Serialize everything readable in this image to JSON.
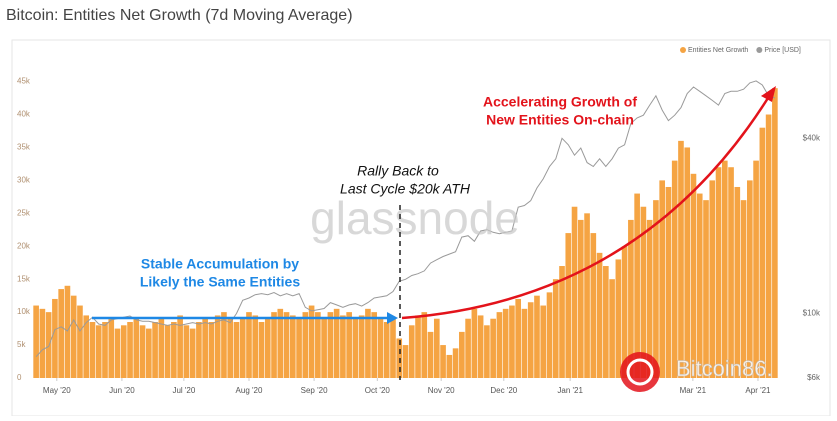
{
  "chart_data": {
    "type": "bar",
    "title": "Bitcoin: Entities Net Growth (7d Moving Average)",
    "categories": [
      null,
      null,
      null,
      null,
      null,
      null,
      null,
      null,
      null,
      null,
      null,
      null,
      null,
      null,
      null,
      null,
      null,
      null,
      null,
      null,
      null,
      null,
      null,
      null,
      null,
      null,
      null,
      null,
      null,
      null,
      null,
      null,
      null,
      null,
      null,
      null,
      null,
      null,
      null,
      null,
      null,
      null,
      null,
      null,
      null,
      null,
      null,
      null,
      null,
      null,
      null,
      null,
      null,
      null,
      null,
      null,
      null,
      null,
      null,
      null,
      null,
      null,
      null,
      null,
      null,
      null,
      null,
      null,
      null,
      null,
      null,
      null,
      null,
      null,
      null,
      null,
      null,
      null,
      null,
      null,
      null,
      null,
      null,
      null,
      null,
      null,
      null,
      null,
      null,
      null,
      null,
      null,
      null,
      null,
      null,
      null,
      null,
      null,
      null,
      null,
      null,
      null,
      null,
      null,
      null,
      null,
      null,
      null,
      null,
      null,
      null,
      null,
      null,
      null,
      null,
      null,
      null,
      null,
      null
    ],
    "series": [
      {
        "name": "Entities Net Growth",
        "color": "#f5a443",
        "values": [
          11000,
          10500,
          10000,
          12000,
          13500,
          14000,
          12500,
          11000,
          9500,
          8500,
          8000,
          8500,
          9000,
          7500,
          8000,
          8500,
          9000,
          8000,
          7500,
          8500,
          9000,
          8000,
          8500,
          9500,
          8000,
          7500,
          8500,
          9000,
          8500,
          9500,
          10000,
          9000,
          8500,
          9000,
          10000,
          9500,
          8500,
          9000,
          10000,
          10500,
          10000,
          9500,
          9000,
          10000,
          11000,
          10000,
          9000,
          10000,
          10500,
          9500,
          10000,
          9000,
          9500,
          10500,
          10000,
          9000,
          8500,
          9000,
          6000,
          5000,
          8000,
          9500,
          10000,
          7000,
          9000,
          5000,
          3500,
          4500,
          7000,
          9000,
          10500,
          9500,
          8000,
          9000,
          10000,
          10500,
          11000,
          12000,
          10500,
          11500,
          12500,
          11000,
          13000,
          15000,
          17000,
          22000,
          26000,
          24000,
          25000,
          22000,
          19000,
          17000,
          15000,
          18000,
          20000,
          24000,
          28000,
          26000,
          24000,
          27000,
          30000,
          29000,
          33000,
          36000,
          35000,
          31000,
          28000,
          27000,
          30000,
          32000,
          33000,
          32000,
          29000,
          27000,
          30000,
          33000,
          38000,
          40000,
          44000
        ]
      },
      {
        "name": "Price [USD]",
        "color": "#9a9a9a",
        "axis": "y2",
        "values": [
          7100,
          7500,
          7700,
          8800,
          9000,
          8700,
          9500,
          8700,
          9300,
          9700,
          9200,
          9100,
          9500,
          9600,
          9700,
          9800,
          9500,
          9400,
          9400,
          9300,
          9200,
          9100,
          9200,
          9100,
          9200,
          9300,
          9200,
          9300,
          9200,
          9400,
          9500,
          9300,
          10000,
          11100,
          11300,
          11600,
          11700,
          11600,
          11800,
          11500,
          11700,
          11500,
          11700,
          10500,
          10200,
          10300,
          10400,
          10900,
          10700,
          10500,
          10700,
          10800,
          10600,
          10900,
          11300,
          11400,
          11500,
          11900,
          12900,
          13100,
          13500,
          13700,
          14000,
          14900,
          15300,
          15700,
          16000,
          16300,
          18300,
          18500,
          17700,
          19200,
          19400,
          19000,
          18800,
          19000,
          19200,
          23200,
          23500,
          24400,
          27000,
          29000,
          32000,
          34000,
          40000,
          38000,
          35000,
          37000,
          33000,
          32000,
          34000,
          32000,
          34000,
          37000,
          38000,
          45000,
          47000,
          48000,
          52000,
          56000,
          50000,
          46000,
          48000,
          51000,
          57000,
          60000,
          58000,
          56000,
          54000,
          52000,
          57000,
          58000,
          58000,
          59000,
          62000,
          63000,
          61000,
          56000,
          55000
        ]
      }
    ],
    "xlim": [
      0,
      119
    ],
    "xticks": [
      {
        "value": 3.8,
        "label": "May '20"
      },
      {
        "value": 14.2,
        "label": "Jun '20"
      },
      {
        "value": 24.1,
        "label": "Jul '20"
      },
      {
        "value": 34.5,
        "label": "Aug '20"
      },
      {
        "value": 44.9,
        "label": "Sep '20"
      },
      {
        "value": 55.0,
        "label": "Oct '20"
      },
      {
        "value": 65.2,
        "label": "Nov '20"
      },
      {
        "value": 75.2,
        "label": "Dec '20"
      },
      {
        "value": 85.8,
        "label": "Jan '21"
      },
      {
        "value": 105.4,
        "label": "Mar '21"
      },
      {
        "value": 115.8,
        "label": "Apr '21"
      }
    ],
    "ylim": [
      0,
      46000
    ],
    "yticks": [
      0,
      {
        "value": 5000,
        "label": "5k"
      },
      {
        "value": 10000,
        "label": "10k"
      },
      {
        "value": 15000,
        "label": "15k"
      },
      {
        "value": 20000,
        "label": "20k"
      },
      {
        "value": 25000,
        "label": "25k"
      },
      {
        "value": 30000,
        "label": "30k"
      },
      {
        "value": 35000,
        "label": "35k"
      },
      {
        "value": 40000,
        "label": "40k"
      },
      {
        "value": 45000,
        "label": "45k"
      }
    ],
    "y2lim": [
      6000,
      66000
    ],
    "y2scale": "log",
    "y2ticks": [
      {
        "value": 6000,
        "label": "$6k"
      },
      {
        "value": 10000,
        "label": "$10k"
      },
      {
        "value": 40000,
        "label": "$40k"
      }
    ],
    "grid": false,
    "legend": "top-right",
    "annotations": [
      "Stable Accumulation by",
      "Likely the Same Entities",
      "Rally Back to",
      "Last Cycle $20k ATH",
      "Accelerating Growth of",
      "New Entities On-chain"
    ],
    "watermarks": [
      "glassnode",
      "Bitcoin86."
    ]
  }
}
